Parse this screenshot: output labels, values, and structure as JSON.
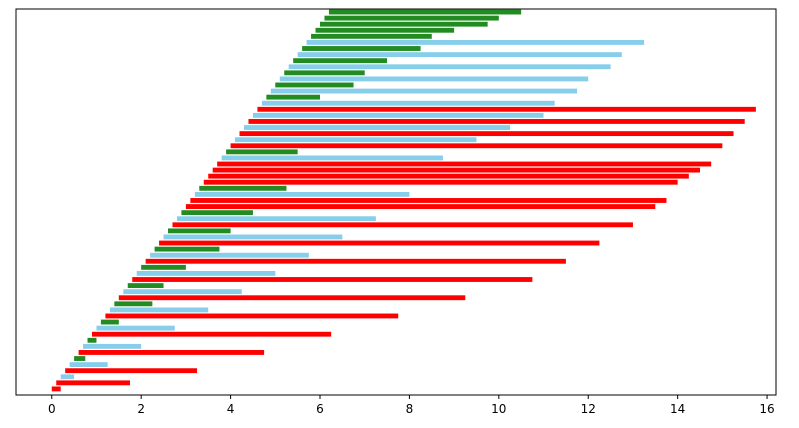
{
  "chart_data": {
    "type": "bar",
    "orientation": "horizontal",
    "xlim": [
      -0.8,
      16.2
    ],
    "xticks": [
      0,
      2,
      4,
      6,
      8,
      10,
      12,
      14,
      16
    ],
    "xtick_labels": [
      "0",
      "2",
      "4",
      "6",
      "8",
      "10",
      "12",
      "14",
      "16"
    ],
    "yticks_visible": false,
    "grid": false,
    "legend": "none",
    "colors": {
      "red": "#ff0000",
      "skyblue": "#87ceeb",
      "green": "#228b22"
    },
    "bars": [
      {
        "start": 0.0,
        "end": 0.2,
        "color": "red"
      },
      {
        "start": 0.1,
        "end": 1.75,
        "color": "red"
      },
      {
        "start": 0.2,
        "end": 0.5,
        "color": "skyblue"
      },
      {
        "start": 0.3,
        "end": 3.25,
        "color": "red"
      },
      {
        "start": 0.4,
        "end": 1.25,
        "color": "skyblue"
      },
      {
        "start": 0.5,
        "end": 0.75,
        "color": "green"
      },
      {
        "start": 0.6,
        "end": 4.75,
        "color": "red"
      },
      {
        "start": 0.7,
        "end": 2.0,
        "color": "skyblue"
      },
      {
        "start": 0.8,
        "end": 1.0,
        "color": "green"
      },
      {
        "start": 0.9,
        "end": 6.25,
        "color": "red"
      },
      {
        "start": 1.0,
        "end": 2.75,
        "color": "skyblue"
      },
      {
        "start": 1.1,
        "end": 1.5,
        "color": "green"
      },
      {
        "start": 1.2,
        "end": 7.75,
        "color": "red"
      },
      {
        "start": 1.3,
        "end": 3.5,
        "color": "skyblue"
      },
      {
        "start": 1.4,
        "end": 2.25,
        "color": "green"
      },
      {
        "start": 1.5,
        "end": 9.25,
        "color": "red"
      },
      {
        "start": 1.6,
        "end": 4.25,
        "color": "skyblue"
      },
      {
        "start": 1.7,
        "end": 2.5,
        "color": "green"
      },
      {
        "start": 1.8,
        "end": 10.75,
        "color": "red"
      },
      {
        "start": 1.9,
        "end": 5.0,
        "color": "skyblue"
      },
      {
        "start": 2.0,
        "end": 3.0,
        "color": "green"
      },
      {
        "start": 2.1,
        "end": 11.5,
        "color": "red"
      },
      {
        "start": 2.2,
        "end": 5.75,
        "color": "skyblue"
      },
      {
        "start": 2.3,
        "end": 3.75,
        "color": "green"
      },
      {
        "start": 2.4,
        "end": 12.25,
        "color": "red"
      },
      {
        "start": 2.5,
        "end": 6.5,
        "color": "skyblue"
      },
      {
        "start": 2.6,
        "end": 4.0,
        "color": "green"
      },
      {
        "start": 2.7,
        "end": 13.0,
        "color": "red"
      },
      {
        "start": 2.8,
        "end": 7.25,
        "color": "skyblue"
      },
      {
        "start": 2.9,
        "end": 4.5,
        "color": "green"
      },
      {
        "start": 3.0,
        "end": 13.5,
        "color": "red"
      },
      {
        "start": 3.1,
        "end": 13.75,
        "color": "red"
      },
      {
        "start": 3.2,
        "end": 8.0,
        "color": "skyblue"
      },
      {
        "start": 3.3,
        "end": 5.25,
        "color": "green"
      },
      {
        "start": 3.4,
        "end": 14.0,
        "color": "red"
      },
      {
        "start": 3.5,
        "end": 14.25,
        "color": "red"
      },
      {
        "start": 3.6,
        "end": 14.5,
        "color": "red"
      },
      {
        "start": 3.7,
        "end": 14.75,
        "color": "red"
      },
      {
        "start": 3.8,
        "end": 8.75,
        "color": "skyblue"
      },
      {
        "start": 3.9,
        "end": 5.5,
        "color": "green"
      },
      {
        "start": 4.0,
        "end": 15.0,
        "color": "red"
      },
      {
        "start": 4.1,
        "end": 9.5,
        "color": "skyblue"
      },
      {
        "start": 4.2,
        "end": 15.25,
        "color": "red"
      },
      {
        "start": 4.3,
        "end": 10.25,
        "color": "skyblue"
      },
      {
        "start": 4.4,
        "end": 15.5,
        "color": "red"
      },
      {
        "start": 4.5,
        "end": 11.0,
        "color": "skyblue"
      },
      {
        "start": 4.6,
        "end": 15.75,
        "color": "red"
      },
      {
        "start": 4.7,
        "end": 11.25,
        "color": "skyblue"
      },
      {
        "start": 4.8,
        "end": 6.0,
        "color": "green"
      },
      {
        "start": 4.9,
        "end": 11.75,
        "color": "skyblue"
      },
      {
        "start": 5.0,
        "end": 6.75,
        "color": "green"
      },
      {
        "start": 5.1,
        "end": 12.0,
        "color": "skyblue"
      },
      {
        "start": 5.2,
        "end": 7.0,
        "color": "green"
      },
      {
        "start": 5.3,
        "end": 12.5,
        "color": "skyblue"
      },
      {
        "start": 5.4,
        "end": 7.5,
        "color": "green"
      },
      {
        "start": 5.5,
        "end": 12.75,
        "color": "skyblue"
      },
      {
        "start": 5.6,
        "end": 8.25,
        "color": "green"
      },
      {
        "start": 5.7,
        "end": 13.25,
        "color": "skyblue"
      },
      {
        "start": 5.8,
        "end": 8.5,
        "color": "green"
      },
      {
        "start": 5.9,
        "end": 9.0,
        "color": "green"
      },
      {
        "start": 6.0,
        "end": 9.75,
        "color": "green"
      },
      {
        "start": 6.1,
        "end": 10.0,
        "color": "green"
      },
      {
        "start": 6.2,
        "end": 10.5,
        "color": "green"
      }
    ]
  }
}
